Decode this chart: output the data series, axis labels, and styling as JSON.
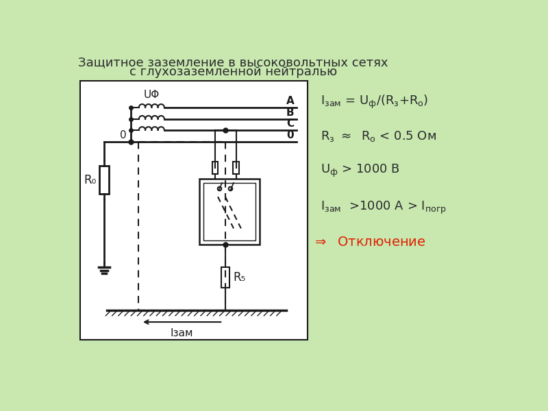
{
  "title_line1": "Защитное заземление в высоковольтных сетях",
  "title_line2": "с глухозаземленной нейтралью",
  "bg_color": "#c8e8b0",
  "diagram_bg": "#ffffff",
  "line_color": "#1a1a1a",
  "label_A": "A",
  "label_B": "B",
  "label_C": "C",
  "label_0": "0",
  "label_U": "UΦ",
  "label_O_left": "0",
  "label_R0": "R₀",
  "label_Rz": "R₅",
  "label_Izam": "Iзам",
  "red_color": "#e02000",
  "dark_color": "#2a2a2a"
}
